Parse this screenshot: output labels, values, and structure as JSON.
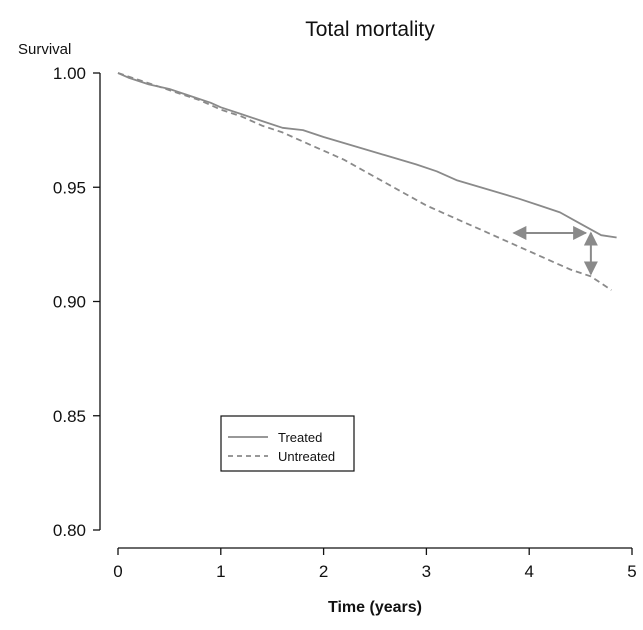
{
  "chart_data": {
    "type": "line",
    "title": "Total mortality",
    "xlabel": "Time (years)",
    "ylabel": "Survival",
    "xlim": [
      0,
      5
    ],
    "ylim": [
      0.8,
      1.0
    ],
    "x_ticks": [
      0,
      1,
      2,
      3,
      4,
      5
    ],
    "x_tick_labels": [
      "0",
      "1",
      "2",
      "3",
      "4",
      "5"
    ],
    "y_ticks": [
      0.8,
      0.85,
      0.9,
      0.95,
      1.0
    ],
    "y_tick_labels": [
      "0.80",
      "0.85",
      "0.90",
      "0.95",
      "1.00"
    ],
    "grid": false,
    "legend_position": "lower-left",
    "series": [
      {
        "name": "Treated",
        "style": "solid",
        "color": "#8a8a8a",
        "points": [
          [
            0,
            1.0
          ],
          [
            0.1,
            0.998
          ],
          [
            0.3,
            0.995
          ],
          [
            0.5,
            0.993
          ],
          [
            0.7,
            0.99
          ],
          [
            0.9,
            0.987
          ],
          [
            1.0,
            0.985
          ],
          [
            1.2,
            0.982
          ],
          [
            1.4,
            0.979
          ],
          [
            1.6,
            0.976
          ],
          [
            1.8,
            0.975
          ],
          [
            2.0,
            0.972
          ],
          [
            2.3,
            0.968
          ],
          [
            2.6,
            0.964
          ],
          [
            2.9,
            0.96
          ],
          [
            3.1,
            0.957
          ],
          [
            3.3,
            0.953
          ],
          [
            3.6,
            0.949
          ],
          [
            3.9,
            0.945
          ],
          [
            4.1,
            0.942
          ],
          [
            4.3,
            0.939
          ],
          [
            4.5,
            0.934
          ],
          [
            4.7,
            0.929
          ],
          [
            4.85,
            0.928
          ]
        ]
      },
      {
        "name": "Untreated",
        "style": "dashed",
        "color": "#8a8a8a",
        "points": [
          [
            0,
            1.0
          ],
          [
            0.2,
            0.997
          ],
          [
            0.4,
            0.994
          ],
          [
            0.6,
            0.991
          ],
          [
            0.8,
            0.988
          ],
          [
            1.0,
            0.984
          ],
          [
            1.2,
            0.981
          ],
          [
            1.4,
            0.977
          ],
          [
            1.6,
            0.974
          ],
          [
            1.8,
            0.97
          ],
          [
            2.0,
            0.966
          ],
          [
            2.2,
            0.962
          ],
          [
            2.4,
            0.957
          ],
          [
            2.6,
            0.952
          ],
          [
            2.8,
            0.947
          ],
          [
            3.0,
            0.942
          ],
          [
            3.2,
            0.938
          ],
          [
            3.4,
            0.934
          ],
          [
            3.6,
            0.93
          ],
          [
            3.8,
            0.926
          ],
          [
            4.0,
            0.922
          ],
          [
            4.2,
            0.918
          ],
          [
            4.4,
            0.914
          ],
          [
            4.6,
            0.911
          ],
          [
            4.8,
            0.905
          ]
        ]
      }
    ],
    "annotations": [
      {
        "type": "double-arrow",
        "orientation": "horizontal",
        "from": [
          3.85,
          0.93
        ],
        "to": [
          4.55,
          0.93
        ],
        "color": "#8a8a8a"
      },
      {
        "type": "double-arrow",
        "orientation": "vertical",
        "from": [
          4.6,
          0.93
        ],
        "to": [
          4.6,
          0.912
        ],
        "color": "#8a8a8a"
      }
    ]
  }
}
